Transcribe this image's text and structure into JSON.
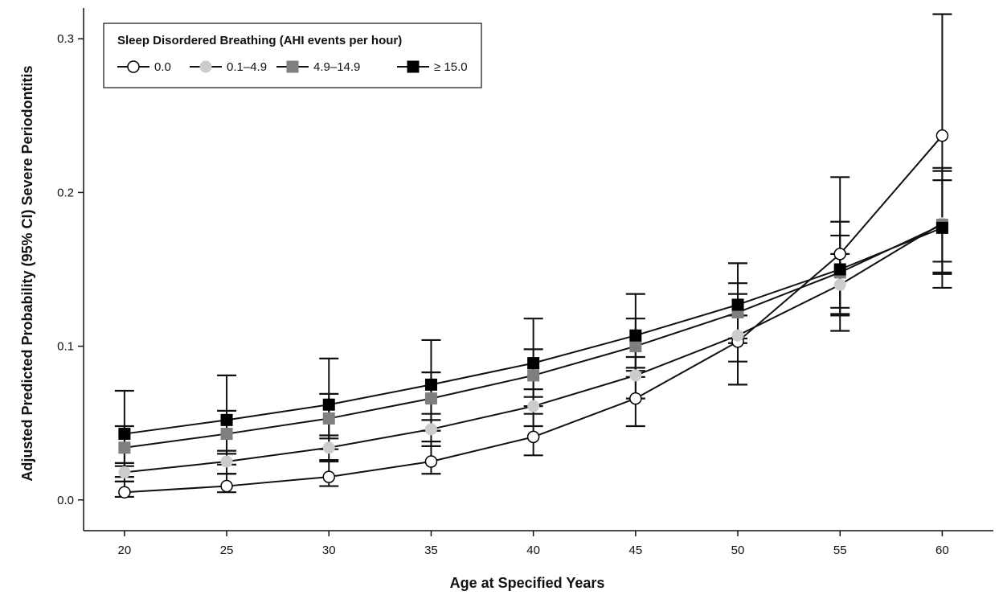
{
  "chart_data": {
    "type": "line",
    "title": "",
    "xlabel": "Age at Specified Years",
    "ylabel": "Adjusted Predicted Probability (95% CI) Severe  Periodontitis",
    "x": [
      20,
      25,
      30,
      35,
      40,
      45,
      50,
      55,
      60
    ],
    "x_tick_labels": [
      "20",
      "25",
      "30",
      "35",
      "40",
      "45",
      "50",
      "55",
      "60"
    ],
    "y_ticks": [
      0.0,
      0.1,
      0.2,
      0.3
    ],
    "y_tick_labels": [
      "0.0",
      "0.1",
      "0.2",
      "0.3"
    ],
    "xlim": [
      18,
      62.5
    ],
    "ylim": [
      -0.02,
      0.32
    ],
    "grid": false,
    "legend": {
      "title": "Sleep Disordered Breathing (AHI events per hour)",
      "position": "top-left"
    },
    "series": [
      {
        "name": "0.0",
        "marker": "circle-open",
        "color": "#000000",
        "fill": "#ffffff",
        "values": [
          0.005,
          0.009,
          0.015,
          0.025,
          0.041,
          0.066,
          0.103,
          0.16,
          0.237
        ],
        "ci_low": [
          0.002,
          0.005,
          0.009,
          0.017,
          0.029,
          0.048,
          0.075,
          0.11,
          0.155
        ],
        "ci_high": [
          0.012,
          0.017,
          0.026,
          0.038,
          0.056,
          0.086,
          0.134,
          0.21,
          0.316
        ]
      },
      {
        "name": "0.1–4.9",
        "marker": "circle-filled",
        "color": "#cccccc",
        "fill": "#cccccc",
        "values": [
          0.018,
          0.025,
          0.034,
          0.046,
          0.061,
          0.081,
          0.107,
          0.14,
          0.18
        ],
        "ci_low": [
          0.012,
          0.017,
          0.025,
          0.035,
          0.048,
          0.066,
          0.09,
          0.12,
          0.148
        ],
        "ci_high": [
          0.024,
          0.032,
          0.042,
          0.056,
          0.072,
          0.093,
          0.12,
          0.16,
          0.208
        ]
      },
      {
        "name": "4.9–14.9",
        "marker": "square",
        "color": "#7f7f7f",
        "fill": "#7f7f7f",
        "values": [
          0.034,
          0.043,
          0.053,
          0.066,
          0.081,
          0.1,
          0.122,
          0.148,
          0.179
        ],
        "ci_low": [
          0.022,
          0.03,
          0.04,
          0.052,
          0.067,
          0.084,
          0.105,
          0.125,
          0.138
        ],
        "ci_high": [
          0.048,
          0.058,
          0.069,
          0.083,
          0.098,
          0.118,
          0.141,
          0.172,
          0.214
        ]
      },
      {
        "name": "≥ 15.0",
        "marker": "square",
        "color": "#000000",
        "fill": "#000000",
        "values": [
          0.043,
          0.052,
          0.062,
          0.075,
          0.089,
          0.107,
          0.127,
          0.15,
          0.177
        ],
        "ci_low": [
          0.015,
          0.023,
          0.033,
          0.045,
          0.061,
          0.08,
          0.102,
          0.121,
          0.147
        ],
        "ci_high": [
          0.071,
          0.081,
          0.092,
          0.104,
          0.118,
          0.134,
          0.154,
          0.181,
          0.216
        ]
      }
    ]
  }
}
